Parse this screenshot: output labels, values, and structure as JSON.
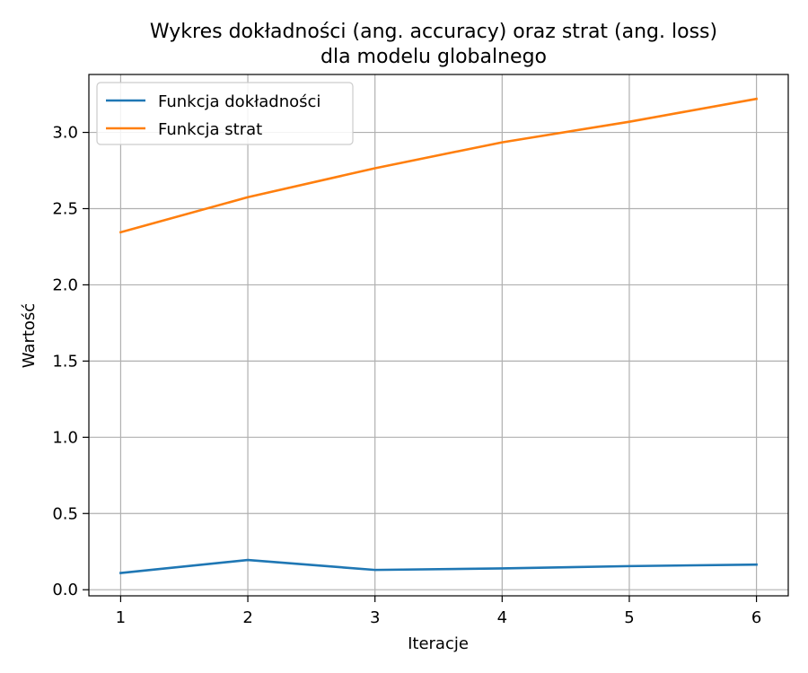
{
  "chart_data": {
    "type": "line",
    "title_lines": [
      "Wykres dokładności (ang. accuracy) oraz strat (ang. loss)",
      "dla modelu globalnego"
    ],
    "xlabel": "Iteracje",
    "ylabel": "Wartość",
    "x": [
      1,
      2,
      3,
      4,
      5,
      6
    ],
    "xticks": [
      "1",
      "2",
      "3",
      "4",
      "5",
      "6"
    ],
    "yticks": [
      "0.0",
      "0.5",
      "1.0",
      "1.5",
      "2.0",
      "2.5",
      "3.0"
    ],
    "xlim": [
      0.75,
      6.25
    ],
    "ylim": [
      -0.04,
      3.38
    ],
    "grid": true,
    "legend_position": "top-left",
    "series": [
      {
        "name": "Funkcja dokładności",
        "color": "#1f77b4",
        "values": [
          0.11,
          0.195,
          0.13,
          0.14,
          0.155,
          0.165
        ]
      },
      {
        "name": "Funkcja strat",
        "color": "#ff7f0e",
        "values": [
          2.345,
          2.575,
          2.765,
          2.935,
          3.07,
          3.22
        ]
      }
    ]
  }
}
